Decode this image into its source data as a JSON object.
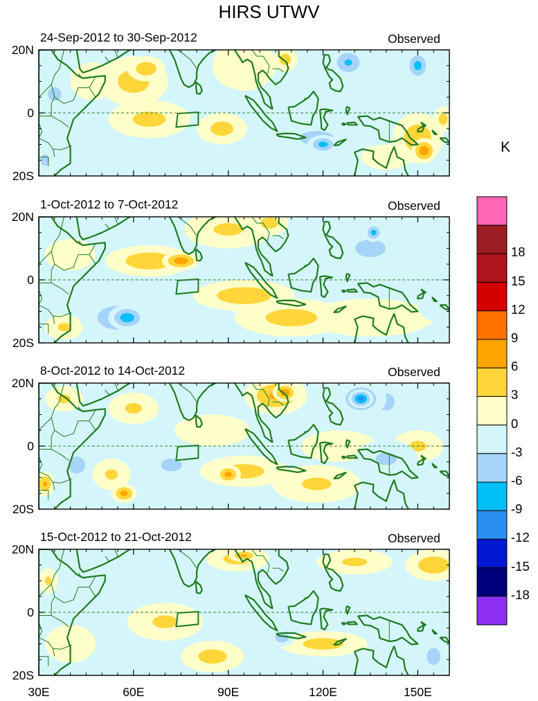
{
  "title": "HIRS UTWV",
  "colorbar": {
    "unit": "K",
    "bins": [
      {
        "color": "#ff66b3",
        "label": ""
      },
      {
        "color": "#9c1d22",
        "label": "18"
      },
      {
        "color": "#b0141b",
        "label": "15"
      },
      {
        "color": "#d40000",
        "label": "12"
      },
      {
        "color": "#ff7200",
        "label": "9"
      },
      {
        "color": "#ffa400",
        "label": "6"
      },
      {
        "color": "#ffd63a",
        "label": "3"
      },
      {
        "color": "#ffffca",
        "label": "0"
      },
      {
        "color": "#d4f6fb",
        "label": "-3"
      },
      {
        "color": "#a6d4f8",
        "label": "-6"
      },
      {
        "color": "#00bff6",
        "label": "-9"
      },
      {
        "color": "#2a8ff0",
        "label": "-12"
      },
      {
        "color": "#0018d0",
        "label": "-15"
      },
      {
        "color": "#00007c",
        "label": "-18"
      },
      {
        "color": "#8c2ff0",
        "label": ""
      }
    ]
  },
  "axes": {
    "y_ticks": [
      {
        "lat": 20,
        "label": "20N"
      },
      {
        "lat": 0,
        "label": "0"
      },
      {
        "lat": -20,
        "label": "20S"
      }
    ],
    "x_ticks": [
      {
        "lon": 30,
        "label": "30E"
      },
      {
        "lon": 60,
        "label": "60E"
      },
      {
        "lon": 90,
        "label": "90E"
      },
      {
        "lon": 120,
        "label": "120E"
      },
      {
        "lon": 150,
        "label": "150E"
      }
    ],
    "lon_range": [
      30,
      160
    ],
    "lat_range": [
      -20,
      20
    ]
  },
  "panels": [
    {
      "period": "24-Sep-2012 to 30-Sep-2012",
      "tag": "Observed",
      "blobs": [
        {
          "lon": 47,
          "lat": 10,
          "rx": 7,
          "ry": 6,
          "v": 1.5
        },
        {
          "lon": 60,
          "lat": 10,
          "rx": 11,
          "ry": 8,
          "v": 4
        },
        {
          "lon": 64,
          "lat": 14,
          "rx": 6,
          "ry": 4,
          "v": 5
        },
        {
          "lon": 65,
          "lat": -2,
          "rx": 13,
          "ry": 6,
          "v": 3.5
        },
        {
          "lon": 88,
          "lat": -5,
          "rx": 8,
          "ry": 5,
          "v": 4
        },
        {
          "lon": 95,
          "lat": 15,
          "rx": 10,
          "ry": 8,
          "v": 2
        },
        {
          "lon": 108,
          "lat": 17,
          "rx": 4,
          "ry": 4,
          "v": 4
        },
        {
          "lon": 150,
          "lat": -8,
          "rx": 8,
          "ry": 8,
          "v": 5
        },
        {
          "lon": 152,
          "lat": -12,
          "rx": 4,
          "ry": 4,
          "v": 8
        },
        {
          "lon": 158,
          "lat": -2,
          "rx": 3,
          "ry": 4,
          "v": 4
        },
        {
          "lon": 140,
          "lat": -14,
          "rx": 8,
          "ry": 4,
          "v": 1.5
        },
        {
          "lon": 80,
          "lat": 4,
          "rx": 18,
          "ry": 5,
          "v": -2
        },
        {
          "lon": 118,
          "lat": -8,
          "rx": 12,
          "ry": 5,
          "v": -4
        },
        {
          "lon": 120,
          "lat": -10,
          "rx": 5,
          "ry": 3,
          "v": -7
        },
        {
          "lon": 128,
          "lat": 16,
          "rx": 6,
          "ry": 5,
          "v": -6
        },
        {
          "lon": 150,
          "lat": 15,
          "rx": 4,
          "ry": 5,
          "v": -7
        },
        {
          "lon": 140,
          "lat": 10,
          "rx": 12,
          "ry": 8,
          "v": -2
        },
        {
          "lon": 35,
          "lat": 6,
          "rx": 4,
          "ry": 4,
          "v": -5
        },
        {
          "lon": 32,
          "lat": -15,
          "rx": 3,
          "ry": 4,
          "v": -4
        }
      ]
    },
    {
      "period": "1-Oct-2012 to 7-Oct-2012",
      "tag": "Observed",
      "blobs": [
        {
          "lon": 65,
          "lat": 6,
          "rx": 14,
          "ry": 5,
          "v": 5
        },
        {
          "lon": 75,
          "lat": 6,
          "rx": 6,
          "ry": 3,
          "v": 8
        },
        {
          "lon": 95,
          "lat": -5,
          "rx": 16,
          "ry": 5,
          "v": 5
        },
        {
          "lon": 110,
          "lat": -12,
          "rx": 18,
          "ry": 6,
          "v": 4
        },
        {
          "lon": 90,
          "lat": 16,
          "rx": 14,
          "ry": 6,
          "v": 3
        },
        {
          "lon": 103,
          "lat": 18,
          "rx": 6,
          "ry": 4,
          "v": 4
        },
        {
          "lon": 40,
          "lat": 8,
          "rx": 8,
          "ry": 5,
          "v": 1
        },
        {
          "lon": 38,
          "lat": -15,
          "rx": 6,
          "ry": 4,
          "v": 3
        },
        {
          "lon": 135,
          "lat": -12,
          "rx": 20,
          "ry": 6,
          "v": 1
        },
        {
          "lon": 55,
          "lat": -12,
          "rx": 12,
          "ry": 7,
          "v": -5
        },
        {
          "lon": 58,
          "lat": -12,
          "rx": 6,
          "ry": 4,
          "v": -8
        },
        {
          "lon": 40,
          "lat": -6,
          "rx": 6,
          "ry": 4,
          "v": -2
        },
        {
          "lon": 135,
          "lat": 10,
          "rx": 12,
          "ry": 7,
          "v": -3.5
        },
        {
          "lon": 136,
          "lat": 15,
          "rx": 3,
          "ry": 3,
          "v": -7
        },
        {
          "lon": 145,
          "lat": 5,
          "rx": 10,
          "ry": 6,
          "v": -2
        },
        {
          "lon": 113,
          "lat": 2,
          "rx": 10,
          "ry": 5,
          "v": -2
        },
        {
          "lon": 155,
          "lat": -8,
          "rx": 5,
          "ry": 5,
          "v": -2
        }
      ]
    },
    {
      "period": "8-Oct-2012 to 14-Oct-2012",
      "tag": "Observed",
      "blobs": [
        {
          "lon": 105,
          "lat": 16,
          "rx": 10,
          "ry": 6,
          "v": 6
        },
        {
          "lon": 108,
          "lat": 17,
          "rx": 4,
          "ry": 3,
          "v": 8
        },
        {
          "lon": 85,
          "lat": 5,
          "rx": 12,
          "ry": 5,
          "v": 2
        },
        {
          "lon": 95,
          "lat": -8,
          "rx": 14,
          "ry": 5,
          "v": 4
        },
        {
          "lon": 90,
          "lat": -9,
          "rx": 4,
          "ry": 3,
          "v": 7
        },
        {
          "lon": 118,
          "lat": -12,
          "rx": 14,
          "ry": 6,
          "v": 3
        },
        {
          "lon": 150,
          "lat": 0,
          "rx": 8,
          "ry": 5,
          "v": 3
        },
        {
          "lon": 60,
          "lat": 12,
          "rx": 8,
          "ry": 5,
          "v": 3
        },
        {
          "lon": 38,
          "lat": 15,
          "rx": 6,
          "ry": 4,
          "v": 3
        },
        {
          "lon": 53,
          "lat": -9,
          "rx": 6,
          "ry": 5,
          "v": 3
        },
        {
          "lon": 57,
          "lat": -15,
          "rx": 4,
          "ry": 3,
          "v": 7
        },
        {
          "lon": 32,
          "lat": -12,
          "rx": 3,
          "ry": 4,
          "v": 6
        },
        {
          "lon": 125,
          "lat": 0,
          "rx": 12,
          "ry": 5,
          "v": 1
        },
        {
          "lon": 132,
          "lat": 15,
          "rx": 8,
          "ry": 6,
          "v": -6
        },
        {
          "lon": 132,
          "lat": 15,
          "rx": 4,
          "ry": 3,
          "v": -10
        },
        {
          "lon": 140,
          "lat": 14,
          "rx": 5,
          "ry": 5,
          "v": -5
        },
        {
          "lon": 42,
          "lat": -6,
          "rx": 5,
          "ry": 5,
          "v": -5
        },
        {
          "lon": 50,
          "lat": -2,
          "rx": 8,
          "ry": 6,
          "v": -2
        },
        {
          "lon": 72,
          "lat": -6,
          "rx": 10,
          "ry": 6,
          "v": -3
        },
        {
          "lon": 80,
          "lat": 14,
          "rx": 8,
          "ry": 4,
          "v": -2
        },
        {
          "lon": 140,
          "lat": -4,
          "rx": 10,
          "ry": 6,
          "v": -3
        },
        {
          "lon": 155,
          "lat": -12,
          "rx": 6,
          "ry": 4,
          "v": -2
        }
      ]
    },
    {
      "period": "15-Oct-2012 to 21-Oct-2012",
      "tag": "Observed",
      "blobs": [
        {
          "lon": 93,
          "lat": 17,
          "rx": 10,
          "ry": 4,
          "v": 4
        },
        {
          "lon": 95,
          "lat": 18,
          "rx": 5,
          "ry": 2,
          "v": 6
        },
        {
          "lon": 130,
          "lat": 16,
          "rx": 12,
          "ry": 4,
          "v": 3
        },
        {
          "lon": 155,
          "lat": 15,
          "rx": 9,
          "ry": 5,
          "v": 5
        },
        {
          "lon": 70,
          "lat": -3,
          "rx": 12,
          "ry": 6,
          "v": 3
        },
        {
          "lon": 85,
          "lat": -14,
          "rx": 10,
          "ry": 5,
          "v": 4
        },
        {
          "lon": 120,
          "lat": -10,
          "rx": 14,
          "ry": 4,
          "v": 4
        },
        {
          "lon": 33,
          "lat": 10,
          "rx": 3,
          "ry": 4,
          "v": 3
        },
        {
          "lon": 40,
          "lat": -10,
          "rx": 8,
          "ry": 6,
          "v": 1
        },
        {
          "lon": 55,
          "lat": 5,
          "rx": 12,
          "ry": 8,
          "v": -2
        },
        {
          "lon": 80,
          "lat": 10,
          "rx": 10,
          "ry": 6,
          "v": -1.5
        },
        {
          "lon": 107,
          "lat": -8,
          "rx": 4,
          "ry": 3,
          "v": -5
        },
        {
          "lon": 130,
          "lat": -5,
          "rx": 6,
          "ry": 4,
          "v": -2
        },
        {
          "lon": 155,
          "lat": -14,
          "rx": 4,
          "ry": 5,
          "v": -5
        },
        {
          "lon": 148,
          "lat": -3,
          "rx": 6,
          "ry": 5,
          "v": -2
        }
      ]
    }
  ]
}
